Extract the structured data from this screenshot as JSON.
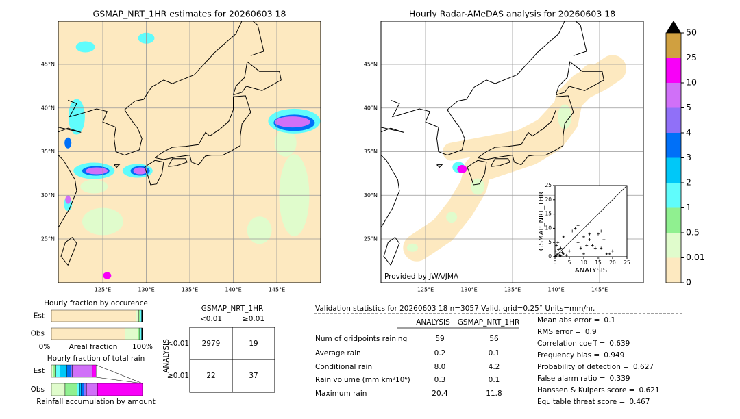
{
  "left_map": {
    "title": "GSMAP_NRT_1HR estimates for 20260603 18",
    "lat_labels": [
      "45°N",
      "40°N",
      "35°N",
      "30°N",
      "25°N"
    ],
    "lon_labels": [
      "125°E",
      "130°E",
      "135°E",
      "140°E",
      "145°E"
    ]
  },
  "right_map": {
    "title": "Hourly Radar-AMeDAS analysis for 20260603 18",
    "lat_labels": [
      "45°N",
      "40°N",
      "35°N",
      "30°N",
      "25°N"
    ],
    "lon_labels": [
      "125°E",
      "130°E",
      "135°E",
      "140°E",
      "145°E"
    ],
    "credit": "Provided by JWA/JMA"
  },
  "colorbar": {
    "ticks": [
      0,
      0.01,
      0.5,
      1,
      2,
      3,
      4,
      5,
      10,
      25,
      50
    ],
    "colors": [
      "#fde9c0",
      "#e0fccc",
      "#90f090",
      "#60fcfc",
      "#00c8f8",
      "#0070f8",
      "#9070f8",
      "#d070f8",
      "#f800f8",
      "#d0a040"
    ],
    "extend_color": "#000000"
  },
  "scatter": {
    "xlabel": "ANALYSIS",
    "ylabel": "GSMAP_NRT_1HR",
    "xlim": [
      0,
      25
    ],
    "ylim": [
      0,
      25
    ],
    "xticks": [
      0,
      5,
      10,
      15,
      20,
      25
    ],
    "yticks": [
      0,
      5,
      10,
      15,
      20,
      25
    ],
    "x": [
      0.5,
      1,
      0.3,
      1.5,
      2,
      0.5,
      1,
      3,
      2,
      4,
      5,
      3,
      6,
      7,
      8,
      8,
      9,
      10,
      10,
      12,
      13,
      14,
      15,
      16,
      16,
      17,
      18,
      19,
      20,
      11,
      12,
      0.2,
      1.2,
      2.5
    ],
    "y": [
      0.5,
      1,
      2,
      0.5,
      3,
      4,
      5,
      1,
      0.3,
      0.5,
      2,
      7,
      9,
      10,
      11,
      5,
      3,
      1,
      7,
      6,
      4,
      3,
      8,
      9,
      3,
      6,
      1,
      1,
      2,
      4,
      8,
      0.2,
      2.5,
      1.5
    ]
  },
  "occurrence": {
    "title": "Hourly fraction by occurence",
    "rows": [
      "Est",
      "Obs"
    ],
    "est": [
      93,
      3,
      1.5,
      1.5,
      1
    ],
    "obs": [
      81,
      14,
      2,
      2,
      1
    ],
    "colors": [
      "#fde9c0",
      "#e0fccc",
      "#90f090",
      "#60fcfc",
      "#000000"
    ],
    "left": "0%",
    "middle": "Areal fraction",
    "right": "100%"
  },
  "total_rain": {
    "title": "Hourly fraction of total rain",
    "rows": [
      "Est",
      "Obs"
    ],
    "est": [
      2,
      3,
      4.5,
      7.5,
      4.5,
      1.5,
      22,
      4
    ],
    "obs": [
      15,
      13,
      3,
      1.5,
      3,
      3,
      12,
      49.5
    ],
    "colors": [
      "#e0fccc",
      "#90f090",
      "#60fcfc",
      "#00c8f8",
      "#0070f8",
      "#9070f8",
      "#d070f8",
      "#f800f8"
    ],
    "footer": "Rainfall accumulation by amount"
  },
  "contingency": {
    "title": "GSMAP_NRT_1HR",
    "columns": [
      "<0.01",
      "≥0.01"
    ],
    "row_title": "ANALYSIS",
    "rows": [
      "<0.01",
      "≥0.01"
    ],
    "cells": [
      [
        2979,
        19
      ],
      [
        22,
        37
      ]
    ]
  },
  "stats": {
    "header": "Validation statistics for 20260603 18  n=3057 Valid. grid=0.25˚ Units=mm/hr.",
    "columns": [
      "ANALYSIS",
      "GSMAP_NRT_1HR"
    ],
    "rows": [
      {
        "label": "Num of gridpoints raining",
        "values": [
          "59",
          "56"
        ]
      },
      {
        "label": "Average rain",
        "values": [
          "0.2",
          "0.1"
        ]
      },
      {
        "label": "Conditional rain",
        "values": [
          "8.0",
          "4.2"
        ]
      },
      {
        "label": "Rain volume (mm km²10⁶)",
        "values": [
          "0.3",
          "0.1"
        ]
      },
      {
        "label": "Maximum rain",
        "values": [
          "20.4",
          "11.8"
        ]
      }
    ]
  },
  "scores": [
    {
      "label": "Mean abs error =",
      "value": "0.1"
    },
    {
      "label": "RMS error =",
      "value": "0.9"
    },
    {
      "label": "Correlation coeff =",
      "value": "0.639"
    },
    {
      "label": "Frequency bias =",
      "value": "0.949"
    },
    {
      "label": "Probability of detection =",
      "value": "0.627"
    },
    {
      "label": "False alarm ratio =",
      "value": "0.339"
    },
    {
      "label": "Hanssen & Kuipers score =",
      "value": "0.621"
    },
    {
      "label": "Equitable threat score =",
      "value": "0.467"
    }
  ]
}
